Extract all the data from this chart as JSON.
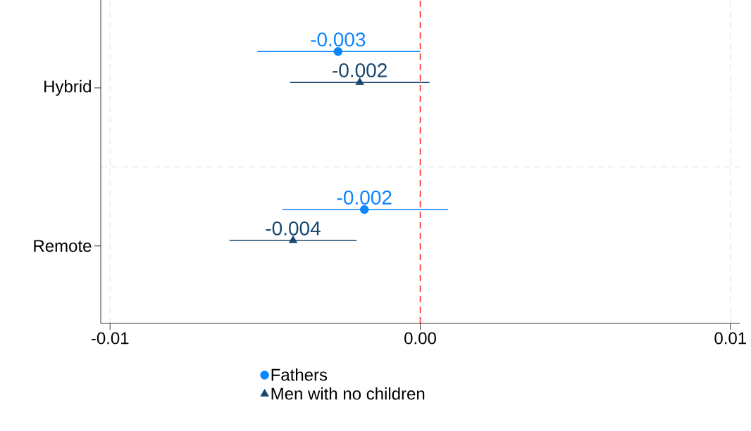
{
  "chart_data": {
    "type": "scatter",
    "orientation": "horizontal",
    "categories": [
      "Hybrid",
      "Remote"
    ],
    "series": [
      {
        "name": "Fathers",
        "color": "#0a84ff",
        "marker": "circle",
        "values": [
          -0.00265,
          -0.0018
        ],
        "errors": [
          [
            -0.00525,
            0.0
          ],
          [
            -0.00445,
            0.0009
          ]
        ],
        "value_labels": [
          "-0.003",
          "-0.002"
        ]
      },
      {
        "name": "Men with no children",
        "color": "#1a476f",
        "marker": "triangle",
        "values": [
          -0.00195,
          -0.0041
        ],
        "errors": [
          [
            -0.0042,
            0.0003
          ],
          [
            -0.00615,
            -0.00205
          ]
        ],
        "value_labels": [
          "-0.002",
          "-0.004"
        ]
      }
    ],
    "xlim": [
      -0.0103,
      0.0103
    ],
    "xticks": [
      {
        "value": -0.01,
        "label": "-0.01"
      },
      {
        "value": 0,
        "label": "0.00"
      },
      {
        "value": 0.01,
        "label": "0.01"
      }
    ],
    "ref_lines": [
      {
        "axis": "x",
        "value": 0,
        "color": "#ff2020",
        "line_style": "dashed"
      }
    ],
    "grid": true,
    "legend": "bottom"
  }
}
